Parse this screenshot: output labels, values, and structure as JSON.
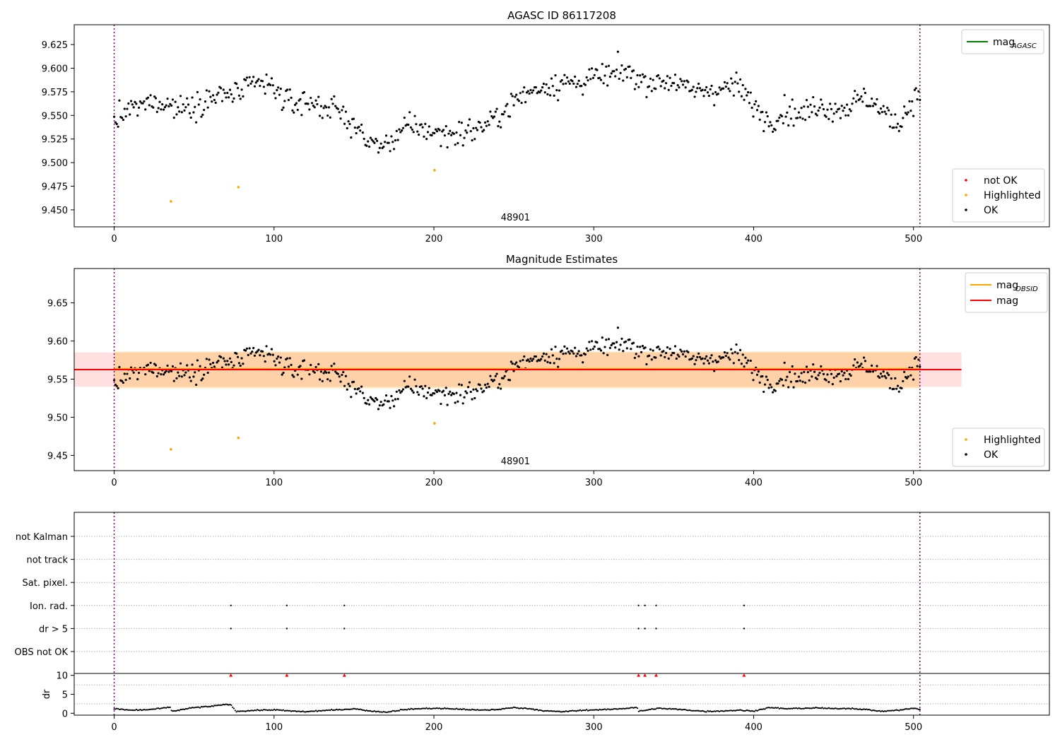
{
  "chart_data": [
    {
      "type": "scatter",
      "title": "AGASC ID 86117208",
      "xlim": [
        -25,
        585
      ],
      "ylim": [
        9.432,
        9.646
      ],
      "xticks": [
        0,
        100,
        200,
        300,
        400,
        500
      ],
      "yticks": [
        9.45,
        9.475,
        9.5,
        9.525,
        9.55,
        9.575,
        9.6,
        9.625
      ],
      "ytick_labels": [
        "9.450",
        "9.475",
        "9.500",
        "9.525",
        "9.550",
        "9.575",
        "9.600",
        "9.625"
      ],
      "obsid_label": "48901",
      "obsid_label_x": 251,
      "obsid_bounds_x": [
        0,
        504
      ],
      "legend_lines": [
        {
          "name": "mag",
          "subscript": "AGASC",
          "color": "#008000"
        }
      ],
      "legend_markers": [
        {
          "name": "not OK",
          "color": "#ff0000"
        },
        {
          "name": "Highlighted",
          "color": "#ffa500"
        },
        {
          "name": "OK",
          "color": "#000000"
        }
      ],
      "highlighted": [
        [
          35.5,
          9.459
        ],
        [
          77.7,
          9.474
        ],
        [
          200.4,
          9.492
        ]
      ],
      "ok_series": {
        "x_start": 0,
        "x_end": 504,
        "count": 620,
        "anchors_x": [
          0,
          10,
          20,
          30,
          40,
          50,
          60,
          70,
          80,
          90,
          100,
          110,
          120,
          130,
          140,
          150,
          160,
          170,
          180,
          190,
          200,
          210,
          220,
          230,
          240,
          250,
          260,
          270,
          280,
          290,
          300,
          310,
          320,
          330,
          340,
          350,
          360,
          370,
          380,
          390,
          400,
          410,
          420,
          430,
          440,
          450,
          460,
          470,
          480,
          490,
          500,
          504
        ],
        "anchors_y": [
          9.543,
          9.556,
          9.562,
          9.565,
          9.558,
          9.562,
          9.568,
          9.572,
          9.574,
          9.585,
          9.578,
          9.562,
          9.565,
          9.56,
          9.555,
          9.54,
          9.52,
          9.518,
          9.535,
          9.538,
          9.532,
          9.53,
          9.532,
          9.538,
          9.548,
          9.565,
          9.575,
          9.582,
          9.584,
          9.585,
          9.59,
          9.592,
          9.597,
          9.587,
          9.585,
          9.588,
          9.575,
          9.577,
          9.578,
          9.582,
          9.56,
          9.544,
          9.556,
          9.55,
          9.562,
          9.556,
          9.56,
          9.57,
          9.555,
          9.54,
          9.568,
          9.57
        ],
        "scatter": 0.011
      }
    },
    {
      "type": "scatter",
      "title": "Magnitude Estimates",
      "xlim": [
        -25,
        585
      ],
      "ylim": [
        9.43,
        9.695
      ],
      "xticks": [
        0,
        100,
        200,
        300,
        400,
        500
      ],
      "yticks": [
        9.45,
        9.5,
        9.55,
        9.6,
        9.65
      ],
      "ytick_labels": [
        "9.45",
        "9.50",
        "9.55",
        "9.60",
        "9.65"
      ],
      "obsid_label": "48901",
      "obsid_label_x": 251,
      "obsid_bounds_x": [
        0,
        504
      ],
      "mag_line": {
        "y": 9.5625,
        "x_range": [
          -25,
          530
        ],
        "band": [
          9.54,
          9.585
        ],
        "color": "#ff0000"
      },
      "mag_obsid_line": {
        "y": 9.5635,
        "x_range": [
          0,
          504
        ],
        "band": [
          9.538,
          9.586
        ],
        "color": "#ffa500"
      },
      "legend_lines": [
        {
          "name": "mag",
          "subscript": "OBSID",
          "color": "#ffa500"
        },
        {
          "name": "mag",
          "subscript": "",
          "color": "#ff0000"
        }
      ],
      "legend_markers": [
        {
          "name": "Highlighted",
          "color": "#ffa500"
        },
        {
          "name": "OK",
          "color": "#000000"
        }
      ],
      "highlighted": [
        [
          35.5,
          9.458
        ],
        [
          77.7,
          9.473
        ],
        [
          200.4,
          9.492
        ]
      ]
    },
    {
      "type": "scatter",
      "title": "",
      "xlim": [
        -25,
        585
      ],
      "xticks": [
        0,
        100,
        200,
        300,
        400,
        500
      ],
      "flag_rows": [
        "not Kalman",
        "not track",
        "Sat. pixel.",
        "Ion. rad.",
        "dr > 5",
        "OBS not OK"
      ],
      "flag_points": {
        "Ion. rad.": [
          73,
          108,
          144,
          328,
          332,
          339,
          394
        ],
        "dr > 5": [
          73,
          108,
          144,
          328,
          332,
          339,
          394
        ]
      },
      "dr_panel": {
        "ylabel": "dr",
        "ylim": [
          -0.5,
          10.5
        ],
        "yticks": [
          0,
          5,
          10
        ],
        "ytick_labels": [
          "0",
          "5",
          "10"
        ],
        "gridlines": [
          2.5,
          7.5
        ],
        "clipped_markers_x": [
          73,
          108,
          144,
          328,
          332,
          339,
          394
        ],
        "clipped_value": 10,
        "series_anchors_x": [
          0,
          10,
          20,
          30,
          35,
          36,
          50,
          60,
          70,
          73,
          76,
          90,
          100,
          110,
          120,
          130,
          140,
          150,
          160,
          170,
          180,
          190,
          200,
          210,
          220,
          230,
          240,
          250,
          260,
          270,
          280,
          290,
          300,
          310,
          320,
          327,
          328,
          340,
          350,
          360,
          370,
          380,
          390,
          400,
          410,
          420,
          430,
          440,
          450,
          460,
          470,
          480,
          490,
          500,
          504
        ],
        "series_anchors_y": [
          1.2,
          0.8,
          0.9,
          1.3,
          1.6,
          0.5,
          1.5,
          1.8,
          2.3,
          2.3,
          0.5,
          0.8,
          0.9,
          0.6,
          0.4,
          0.7,
          0.9,
          1.2,
          0.6,
          0.3,
          0.9,
          1.2,
          1.3,
          1.2,
          1.0,
          0.8,
          1.0,
          1.5,
          1.2,
          0.6,
          0.4,
          0.7,
          0.9,
          1.0,
          1.3,
          1.6,
          0.5,
          1.3,
          1.1,
          0.8,
          0.5,
          0.6,
          0.8,
          0.6,
          1.5,
          1.2,
          1.3,
          1.4,
          1.2,
          1.3,
          1.0,
          0.5,
          0.8,
          1.3,
          1.0
        ]
      }
    }
  ]
}
